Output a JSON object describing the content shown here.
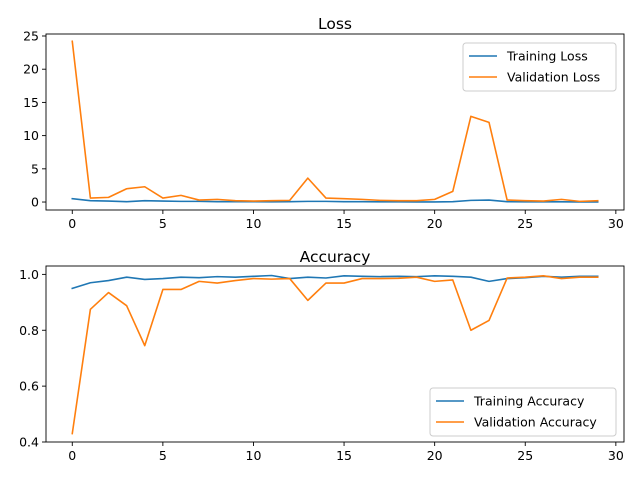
{
  "chart_data": [
    {
      "type": "line",
      "title": "Loss",
      "xlabel": "",
      "ylabel": "",
      "xlim": [
        -1.45,
        30.45
      ],
      "ylim": [
        -1.2,
        25.3
      ],
      "xticks": [
        0,
        5,
        10,
        15,
        20,
        25,
        30
      ],
      "yticks": [
        0,
        5,
        10,
        15,
        20,
        25
      ],
      "grid": false,
      "legend_position": "upper right",
      "x": [
        0,
        1,
        2,
        3,
        4,
        5,
        6,
        7,
        8,
        9,
        10,
        11,
        12,
        13,
        14,
        15,
        16,
        17,
        18,
        19,
        20,
        21,
        22,
        23,
        24,
        25,
        26,
        27,
        28,
        29
      ],
      "series": [
        {
          "name": "Training Loss",
          "color": "#1f77b4",
          "values": [
            0.5,
            0.2,
            0.15,
            0.05,
            0.2,
            0.15,
            0.1,
            0.1,
            0.05,
            0.05,
            0.05,
            0.03,
            0.05,
            0.1,
            0.1,
            0.05,
            0.05,
            0.03,
            0.03,
            0.02,
            0.02,
            0.05,
            0.25,
            0.3,
            0.05,
            0.03,
            0.03,
            0.03,
            0.02,
            0.02
          ]
        },
        {
          "name": "Validation Loss",
          "color": "#ff7f0e",
          "values": [
            24.2,
            0.6,
            0.7,
            2.0,
            2.3,
            0.6,
            1.0,
            0.3,
            0.4,
            0.2,
            0.15,
            0.2,
            0.25,
            3.6,
            0.6,
            0.5,
            0.4,
            0.25,
            0.2,
            0.2,
            0.4,
            1.6,
            12.9,
            12.0,
            0.3,
            0.2,
            0.15,
            0.4,
            0.1,
            0.2
          ]
        }
      ]
    },
    {
      "type": "line",
      "title": "Accuracy",
      "xlabel": "",
      "ylabel": "",
      "xlim": [
        -1.45,
        30.45
      ],
      "ylim": [
        0.4,
        1.03
      ],
      "xticks": [
        0,
        5,
        10,
        15,
        20,
        25,
        30
      ],
      "yticks": [
        0.4,
        0.6,
        0.8,
        1.0
      ],
      "grid": false,
      "legend_position": "lower right",
      "x": [
        0,
        1,
        2,
        3,
        4,
        5,
        6,
        7,
        8,
        9,
        10,
        11,
        12,
        13,
        14,
        15,
        16,
        17,
        18,
        19,
        20,
        21,
        22,
        23,
        24,
        25,
        26,
        27,
        28,
        29
      ],
      "series": [
        {
          "name": "Training Accuracy",
          "color": "#1f77b4",
          "values": [
            0.95,
            0.97,
            0.978,
            0.99,
            0.982,
            0.985,
            0.99,
            0.988,
            0.992,
            0.99,
            0.993,
            0.996,
            0.985,
            0.99,
            0.987,
            0.995,
            0.993,
            0.992,
            0.993,
            0.992,
            0.995,
            0.993,
            0.99,
            0.975,
            0.985,
            0.988,
            0.993,
            0.99,
            0.993,
            0.993
          ]
        },
        {
          "name": "Validation Accuracy",
          "color": "#ff7f0e",
          "values": [
            0.43,
            0.875,
            0.935,
            0.888,
            0.745,
            0.946,
            0.946,
            0.975,
            0.969,
            0.978,
            0.985,
            0.983,
            0.985,
            0.907,
            0.969,
            0.969,
            0.985,
            0.985,
            0.986,
            0.99,
            0.975,
            0.98,
            0.8,
            0.835,
            0.987,
            0.99,
            0.995,
            0.985,
            0.99,
            0.99
          ]
        }
      ]
    }
  ]
}
